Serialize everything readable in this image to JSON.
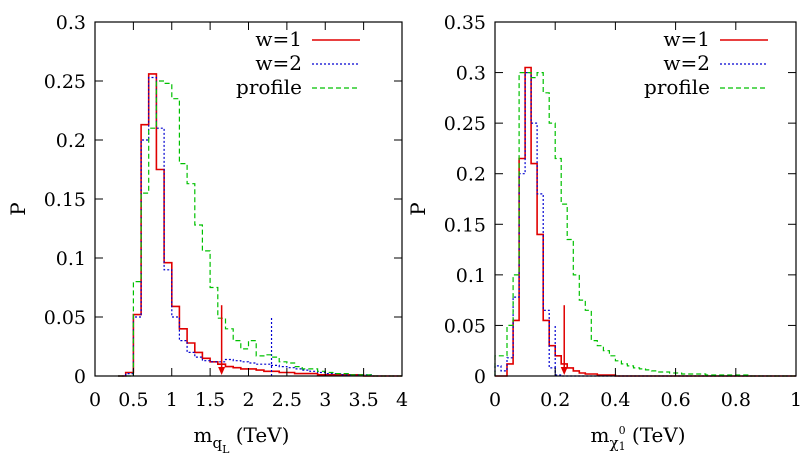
{
  "chart_data": [
    {
      "type": "line",
      "ylabel": "P",
      "xlabel": "(TeV)",
      "xlabel_symbol": "m",
      "xlabel_sub": "q",
      "xlabel_subsub": "L",
      "xlim": [
        0,
        4
      ],
      "ylim": [
        0,
        0.3
      ],
      "xticks": [
        0,
        0.5,
        1,
        1.5,
        2,
        2.5,
        3,
        3.5,
        4
      ],
      "xtick_labels": [
        "0",
        "0.5",
        "1",
        "1.5",
        "2",
        "2.5",
        "3",
        "3.5",
        "4"
      ],
      "yticks": [
        0,
        0.05,
        0.1,
        0.15,
        0.2,
        0.25,
        0.3
      ],
      "ytick_labels": [
        "0",
        "0.05",
        "0.1",
        "0.15",
        "0.2",
        "0.25",
        "0.3"
      ],
      "legend": "top-right",
      "bin_edges": [
        0.3,
        0.4,
        0.5,
        0.6,
        0.7,
        0.8,
        0.9,
        1.0,
        1.1,
        1.2,
        1.3,
        1.4,
        1.5,
        1.6,
        1.7,
        1.8,
        1.9,
        2.0,
        2.1,
        2.2,
        2.3,
        2.4,
        2.5,
        2.6,
        2.7,
        2.8,
        2.9,
        3.0,
        3.1,
        3.2,
        3.3,
        3.4,
        3.5,
        3.6,
        3.7,
        3.8,
        3.9,
        4.0
      ],
      "series": [
        {
          "name": "w=1",
          "color": "#e00000",
          "dash": "none",
          "values": [
            0,
            0.003,
            0.052,
            0.213,
            0.256,
            0.175,
            0.096,
            0.059,
            0.04,
            0.028,
            0.02,
            0.015,
            0.012,
            0.01,
            0.008,
            0.007,
            0.006,
            0.006,
            0.005,
            0.004,
            0.004,
            0.003,
            0.003,
            0.002,
            0.002,
            0.002,
            0.001,
            0.001,
            0.001,
            0.001,
            0.001,
            0.001,
            0,
            0,
            0,
            0,
            0
          ]
        },
        {
          "name": "w=2",
          "color": "#0000d0",
          "dash": "2,2",
          "values": [
            0,
            0.002,
            0.05,
            0.2,
            0.253,
            0.21,
            0.09,
            0.05,
            0.03,
            0.02,
            0.016,
            0.013,
            0.012,
            0.012,
            0.014,
            0.013,
            0.012,
            0.011,
            0.01,
            0.01,
            0.009,
            0.008,
            0.007,
            0.006,
            0.005,
            0.004,
            0.003,
            0.002,
            0.002,
            0.001,
            0.001,
            0.001,
            0.001,
            0,
            0,
            0,
            0
          ],
          "spike": {
            "x": 2.3,
            "y": 0.05
          }
        },
        {
          "name": "profile",
          "color": "#00c000",
          "dash": "5,3",
          "values": [
            0,
            0,
            0.08,
            0.155,
            0.21,
            0.25,
            0.248,
            0.235,
            0.18,
            0.163,
            0.128,
            0.106,
            0.075,
            0.049,
            0.04,
            0.03,
            0.023,
            0.03,
            0.017,
            0.018,
            0.016,
            0.012,
            0.011,
            0.008,
            0.006,
            0.006,
            0.004,
            0.003,
            0.002,
            0.002,
            0.001,
            0.001,
            0.001,
            0,
            0,
            0,
            0
          ]
        }
      ],
      "marker": {
        "x": 1.65,
        "y_top": 0.06,
        "color": "#e00000"
      }
    },
    {
      "type": "line",
      "ylabel": "P",
      "xlabel": "(TeV)",
      "xlabel_symbol": "m",
      "xlabel_sub": "χ",
      "xlabel_subsub": "1",
      "xlabel_sup": "0",
      "xlim": [
        0,
        1
      ],
      "ylim": [
        0,
        0.35
      ],
      "xticks": [
        0,
        0.2,
        0.4,
        0.6,
        0.8,
        1.0
      ],
      "xtick_labels": [
        "0",
        "0.2",
        "0.4",
        "0.6",
        "0.8",
        "1"
      ],
      "yticks": [
        0,
        0.05,
        0.1,
        0.15,
        0.2,
        0.25,
        0.3,
        0.35
      ],
      "ytick_labels": [
        "0",
        "0.05",
        "0.1",
        "0.15",
        "0.2",
        "0.25",
        "0.3",
        "0.35"
      ],
      "legend": "top-right",
      "bin_edges": [
        0,
        0.02,
        0.04,
        0.06,
        0.08,
        0.1,
        0.12,
        0.14,
        0.16,
        0.18,
        0.2,
        0.22,
        0.24,
        0.26,
        0.28,
        0.3,
        0.32,
        0.34,
        0.36,
        0.38,
        0.4,
        0.42,
        0.44,
        0.46,
        0.48,
        0.5,
        0.52,
        0.54,
        0.56,
        0.58,
        0.6,
        0.62,
        0.64,
        0.66,
        0.68,
        0.7,
        0.72,
        0.74,
        0.76,
        0.78,
        0.8,
        0.82,
        0.84,
        0.86,
        0.88,
        0.9,
        0.92,
        0.94,
        0.96,
        0.98,
        1.0
      ],
      "series": [
        {
          "name": "w=1",
          "color": "#e00000",
          "dash": "none",
          "values": [
            0,
            0,
            0.012,
            0.055,
            0.215,
            0.305,
            0.21,
            0.14,
            0.055,
            0.03,
            0.02,
            0.012,
            0.008,
            0.005,
            0.003,
            0.002,
            0.002,
            0.001,
            0.001,
            0.001,
            0,
            0,
            0,
            0,
            0,
            0,
            0,
            0,
            0,
            0,
            0,
            0,
            0,
            0,
            0,
            0,
            0,
            0,
            0,
            0,
            0,
            0,
            0,
            0,
            0,
            0,
            0,
            0,
            0,
            0
          ]
        },
        {
          "name": "w=2",
          "color": "#0000d0",
          "dash": "2,2",
          "values": [
            0.01,
            0.005,
            0.018,
            0.078,
            0.2,
            0.3,
            0.25,
            0.18,
            0.065,
            0.008,
            0.001,
            0,
            0,
            0,
            0,
            0,
            0,
            0,
            0,
            0,
            0,
            0,
            0,
            0,
            0,
            0,
            0,
            0,
            0,
            0,
            0,
            0,
            0,
            0,
            0,
            0,
            0,
            0,
            0,
            0,
            0,
            0,
            0,
            0,
            0,
            0,
            0,
            0,
            0,
            0
          ],
          "spike": {
            "x": 0.2,
            "y": 0.05
          }
        },
        {
          "name": "profile",
          "color": "#00c000",
          "dash": "5,3",
          "values": [
            0.02,
            0.02,
            0.05,
            0.1,
            0.3,
            0.3,
            0.295,
            0.3,
            0.28,
            0.25,
            0.215,
            0.17,
            0.135,
            0.1,
            0.075,
            0.065,
            0.035,
            0.03,
            0.025,
            0.02,
            0.015,
            0.012,
            0.01,
            0.008,
            0.007,
            0.006,
            0.005,
            0.004,
            0.004,
            0.003,
            0.003,
            0.002,
            0.002,
            0.002,
            0.002,
            0.001,
            0.001,
            0.001,
            0.001,
            0.001,
            0.001,
            0.001,
            0,
            0,
            0,
            0,
            0,
            0,
            0,
            0
          ]
        }
      ],
      "marker": {
        "x": 0.23,
        "y_top": 0.07,
        "color": "#e00000"
      }
    }
  ]
}
